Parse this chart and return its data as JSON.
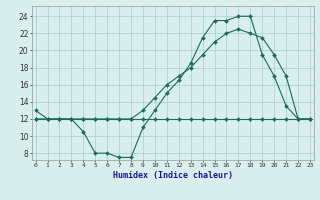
{
  "xlabel": "Humidex (Indice chaleur)",
  "bg_color": "#d8efee",
  "grid_color": "#aed4d2",
  "line_color": "#1a6b5a",
  "x_ticks": [
    0,
    1,
    2,
    3,
    4,
    5,
    6,
    7,
    8,
    9,
    10,
    11,
    12,
    13,
    14,
    15,
    16,
    17,
    18,
    19,
    20,
    21,
    22,
    23
  ],
  "y_ticks": [
    8,
    10,
    12,
    14,
    16,
    18,
    20,
    22,
    24
  ],
  "xlim": [
    -0.3,
    23.3
  ],
  "ylim": [
    7.2,
    25.2
  ],
  "line1_y": [
    13,
    12,
    12,
    12,
    10.5,
    8,
    8,
    7.5,
    7.5,
    11,
    13,
    15,
    16.5,
    18.5,
    21.5,
    23.5,
    23.5,
    24,
    24,
    19.5,
    17,
    13.5,
    12,
    12
  ],
  "line2_y": [
    12,
    12,
    12,
    12,
    12,
    12,
    12,
    12,
    12,
    12,
    12,
    12,
    12,
    12,
    12,
    12,
    12,
    12,
    12,
    12,
    12,
    12,
    12,
    12
  ],
  "line3_y": [
    12,
    12,
    12,
    12,
    12,
    12,
    12,
    12,
    12,
    13,
    14.5,
    16,
    17,
    18,
    19.5,
    21,
    22,
    22.5,
    22,
    21.5,
    19.5,
    17,
    12,
    12
  ]
}
